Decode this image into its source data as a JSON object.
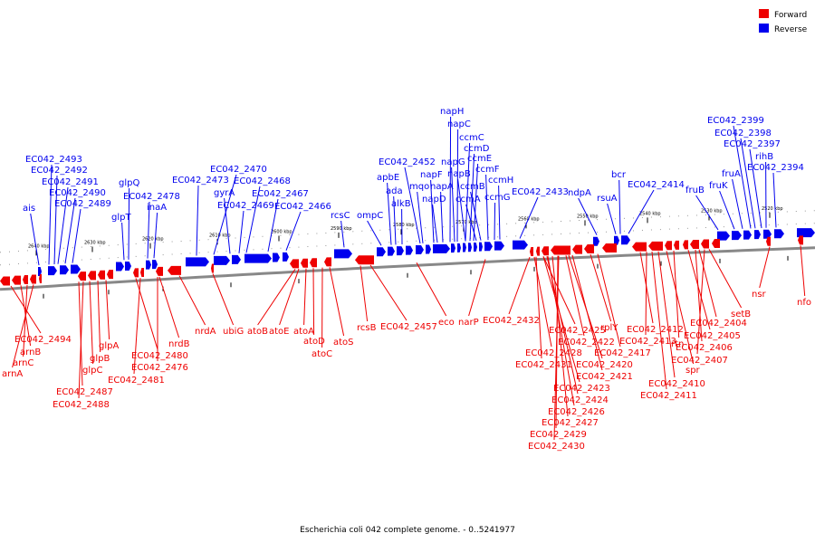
{
  "caption": "Escherichia coli 042 complete genome. - 0..5241977",
  "legend": [
    {
      "label": "Forward",
      "color": "#ee0000"
    },
    {
      "label": "Reverse",
      "color": "#0000ee"
    }
  ],
  "colors": {
    "forward": "#ee0000",
    "reverse": "#0000ee",
    "backbone": "#888888"
  },
  "ticks": [
    "2640 kbp",
    "2630 kbp",
    "2620 kbp",
    "2610 kbp",
    "2600 kbp",
    "2590 kbp",
    "2580 kbp",
    "2570 kbp",
    "2560 kbp",
    "2550 kbp",
    "2540 kbp",
    "2530 kbp",
    "2520 kbp"
  ],
  "reverse_labels": [
    "ais",
    "EC042_2493",
    "EC042_2492",
    "EC042_2491",
    "EC042_2490",
    "EC042_2489",
    "glpQ",
    "glpT",
    "EC042_2478",
    "inaA",
    "EC042_2473",
    "EC042_2470",
    "gyrA",
    "EC042_2469",
    "EC042_2468",
    "EC042_2467",
    "EC042_2466",
    "rcsC",
    "ompC",
    "apbE",
    "ada",
    "alkB",
    "EC042_2452",
    "mqo",
    "napF",
    "napD",
    "napA",
    "napG",
    "napH",
    "napC",
    "napB",
    "ccmC",
    "ccmD",
    "ccmE",
    "ccmA",
    "ccmB",
    "ccmF",
    "ccmG",
    "ccmH",
    "EC042_2433",
    "ndpA",
    "rsuA",
    "bcr",
    "EC042_2414",
    "fruB",
    "fruK",
    "fruA",
    "EC042_2399",
    "EC042_2398",
    "EC042_2397",
    "rihB",
    "EC042_2394"
  ],
  "forward_labels": [
    "EC042_2494",
    "arnB",
    "arnC",
    "arnA",
    "EC042_2487",
    "EC042_2488",
    "glpC",
    "glpB",
    "glpA",
    "EC042_2480",
    "EC042_2481",
    "EC042_2476",
    "nrdB",
    "nrdA",
    "ubiG",
    "atoB",
    "atoE",
    "atoA",
    "atoD",
    "atoC",
    "atoS",
    "rcsB",
    "EC042_2457",
    "eco",
    "narP",
    "EC042_2432",
    "EC042_2425",
    "EC042_2428",
    "EC042_2431",
    "EC042_2422",
    "EC042_2423",
    "EC042_2420",
    "EC042_2424",
    "EC042_2421",
    "EC042_2426",
    "EC042_2427",
    "EC042_2429",
    "EC042_2430",
    "rplY",
    "EC042_2417",
    "EC042_2412",
    "EC042_2413",
    "EC042_2410",
    "EC042_2411",
    "rtn",
    "EC042_2404",
    "EC042_2405",
    "EC042_2406",
    "EC042_2407",
    "spr",
    "setB",
    "nsr",
    "nfo"
  ]
}
